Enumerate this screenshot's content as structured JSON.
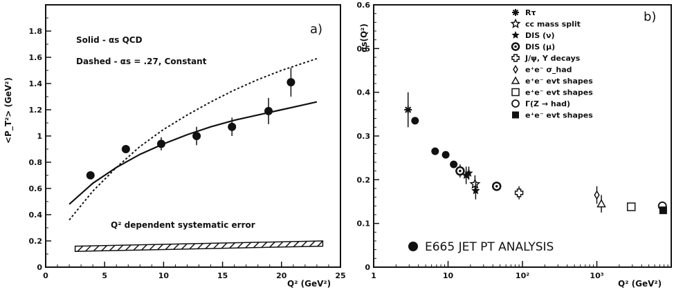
{
  "colors": {
    "ink": "#111111",
    "background": "#ffffff"
  },
  "chart_data": [
    {
      "type": "line",
      "panel_label": "a)",
      "xlabel": "Q² (GeV²)",
      "ylabel": "<P_T²> (GeV²)",
      "xlim": [
        0,
        25
      ],
      "ylim": [
        0,
        2
      ],
      "x_ticks": [
        "0",
        "5",
        "10",
        "15",
        "20",
        "25"
      ],
      "y_ticks": [
        "0",
        "0.2",
        "0.4",
        "0.6",
        "0.8",
        "1",
        "1.2",
        "1.4",
        "1.6",
        "1.8"
      ],
      "annotations": {
        "solid": "Solid - αs QCD",
        "dashed": "Dashed - αs = .27, Constant",
        "systematic": "Q² dependent systematic error"
      },
      "series": [
        {
          "style": "points",
          "x": [
            3.8,
            6.8,
            9.8,
            12.8,
            15.8,
            18.9,
            20.8
          ],
          "y": [
            0.7,
            0.9,
            0.94,
            1.0,
            1.07,
            1.19,
            1.41
          ],
          "yerr": [
            0.03,
            0.03,
            0.05,
            0.07,
            0.07,
            0.1,
            0.11
          ]
        },
        {
          "style": "solid",
          "x": [
            2,
            4,
            6,
            8,
            10,
            12,
            14,
            16,
            18,
            20,
            22,
            23
          ],
          "y": [
            0.48,
            0.64,
            0.76,
            0.86,
            0.94,
            1.01,
            1.07,
            1.12,
            1.16,
            1.2,
            1.24,
            1.26
          ]
        },
        {
          "style": "dashed",
          "x": [
            2,
            4,
            6,
            8,
            10,
            12,
            14,
            16,
            18,
            20,
            22,
            23
          ],
          "y": [
            0.36,
            0.58,
            0.76,
            0.92,
            1.05,
            1.16,
            1.26,
            1.35,
            1.43,
            1.5,
            1.56,
            1.59
          ]
        }
      ],
      "error_band": {
        "x": [
          2.5,
          23.5
        ],
        "y_low": [
          0.12,
          0.16
        ],
        "y_high": [
          0.16,
          0.2
        ]
      }
    },
    {
      "type": "scatter",
      "panel_label": "b)",
      "xlabel": "Q² (GeV²)",
      "ylabel": "αs(Q²)",
      "xscale": "log",
      "xlim": [
        1,
        10000
      ],
      "ylim": [
        0,
        0.6
      ],
      "x_ticks": [
        "1",
        "10",
        "10²",
        "10³"
      ],
      "y_ticks": [
        "0",
        "0.1",
        "0.2",
        "0.3",
        "0.4",
        "0.5",
        "0.6"
      ],
      "annotation": "E665 JET PT ANALYSIS",
      "legend": [
        {
          "label": "Rτ",
          "marker": "asterisk"
        },
        {
          "label": "cc mass split",
          "marker": "star-open"
        },
        {
          "label": "DIS (ν)",
          "marker": "star"
        },
        {
          "label": "DIS (μ)",
          "marker": "circle-dot"
        },
        {
          "label": "J/ψ, Υ decays",
          "marker": "cross-open"
        },
        {
          "label": "e⁺e⁻ σ_had",
          "marker": "diamond"
        },
        {
          "label": "e⁺e⁻ evt shapes",
          "marker": "triangle"
        },
        {
          "label": "e⁺e⁻ evt shapes",
          "marker": "square-open"
        },
        {
          "label": "Γ(Z → had)",
          "marker": "circle-open"
        },
        {
          "label": "e⁺e⁻ evt shapes",
          "marker": "square-filled"
        },
        {
          "label": "E665 JET PT ANALYSIS",
          "marker": "circle-filled"
        }
      ],
      "points": [
        {
          "x": 2.9,
          "y": 0.36,
          "err": 0.04,
          "marker": "asterisk"
        },
        {
          "x": 3.6,
          "y": 0.335,
          "err": 0.0,
          "marker": "circle-filled"
        },
        {
          "x": 6.7,
          "y": 0.265,
          "err": 0.0,
          "marker": "circle-filled"
        },
        {
          "x": 9.3,
          "y": 0.257,
          "err": 0.0,
          "marker": "circle-filled"
        },
        {
          "x": 11.9,
          "y": 0.235,
          "err": 0.0,
          "marker": "circle-filled"
        },
        {
          "x": 14.5,
          "y": 0.22,
          "err": 0.015,
          "marker": "circle-dot"
        },
        {
          "x": 17.5,
          "y": 0.21,
          "err": 0.02,
          "marker": "star"
        },
        {
          "x": 19.0,
          "y": 0.215,
          "err": 0.015,
          "marker": "star"
        },
        {
          "x": 23.0,
          "y": 0.19,
          "err": 0.02,
          "marker": "star-open"
        },
        {
          "x": 23.5,
          "y": 0.175,
          "err": 0.02,
          "marker": "star"
        },
        {
          "x": 45.0,
          "y": 0.185,
          "err": 0.01,
          "marker": "circle-dot"
        },
        {
          "x": 90.0,
          "y": 0.17,
          "err": 0.015,
          "marker": "cross-open"
        },
        {
          "x": 1000.0,
          "y": 0.165,
          "err": 0.02,
          "marker": "diamond"
        },
        {
          "x": 1150.0,
          "y": 0.145,
          "err": 0.02,
          "marker": "triangle"
        },
        {
          "x": 2900.0,
          "y": 0.138,
          "err": 0.0,
          "marker": "square-open"
        },
        {
          "x": 7600.0,
          "y": 0.14,
          "err": 0.0,
          "marker": "circle-open"
        },
        {
          "x": 7800.0,
          "y": 0.13,
          "err": 0.0,
          "marker": "square-filled"
        }
      ]
    }
  ]
}
